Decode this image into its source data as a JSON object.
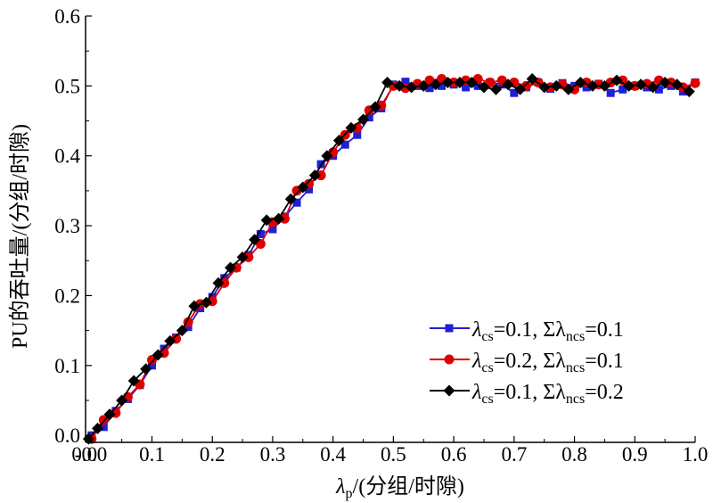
{
  "chart_data": {
    "type": "line",
    "title": "",
    "xlabel": "λp/(分组/时隙)",
    "xlabel_parts": {
      "symbol": "λ",
      "sub": "p",
      "rest": "/(分组/时隙)"
    },
    "ylabel": "PU的吞吐量/(分组/时隙)",
    "xlim": [
      -0.01,
      1.0
    ],
    "ylim": [
      -0.01,
      0.6
    ],
    "x_ticks": [
      0.0,
      0.1,
      0.2,
      0.3,
      0.4,
      0.5,
      0.6,
      0.7,
      0.8,
      0.9,
      1.0
    ],
    "x_tick_labels": [
      "0.0",
      "0.1",
      "0.2",
      "0.3",
      "0.4",
      "0.5",
      "0.6",
      "0.7",
      "0.8",
      "0.9",
      "1.0"
    ],
    "y_ticks": [
      0.0,
      0.1,
      0.2,
      0.3,
      0.4,
      0.5,
      0.6
    ],
    "y_tick_labels": [
      "0.0",
      "0.1",
      "0.2",
      "0.3",
      "0.4",
      "0.5",
      "0.6"
    ],
    "extra_x_tick_label": "-0.0",
    "grid": false,
    "legend_position": "lower-right",
    "series": [
      {
        "name": "λcs=0.1, Σλncs=0.1",
        "legend": {
          "p1": "λ",
          "s1": "cs",
          "p2": "=0.1, Σλ",
          "s2": "ncs",
          "p3": "=0.1"
        },
        "color": "#1f1fd6",
        "marker": "square",
        "x": [
          0.0,
          0.02,
          0.04,
          0.06,
          0.08,
          0.1,
          0.12,
          0.14,
          0.16,
          0.18,
          0.2,
          0.22,
          0.24,
          0.26,
          0.28,
          0.3,
          0.32,
          0.34,
          0.36,
          0.38,
          0.4,
          0.42,
          0.44,
          0.46,
          0.48,
          0.5,
          0.52,
          0.54,
          0.56,
          0.58,
          0.6,
          0.62,
          0.64,
          0.66,
          0.68,
          0.7,
          0.72,
          0.74,
          0.76,
          0.78,
          0.8,
          0.82,
          0.84,
          0.86,
          0.88,
          0.9,
          0.92,
          0.94,
          0.96,
          0.98,
          1.0
        ],
        "y": [
          0.0,
          0.012,
          0.035,
          0.052,
          0.072,
          0.1,
          0.124,
          0.14,
          0.155,
          0.182,
          0.198,
          0.225,
          0.24,
          0.258,
          0.288,
          0.295,
          0.313,
          0.333,
          0.352,
          0.388,
          0.4,
          0.416,
          0.43,
          0.455,
          0.468,
          0.502,
          0.506,
          0.5,
          0.497,
          0.5,
          0.502,
          0.498,
          0.5,
          0.505,
          0.502,
          0.49,
          0.498,
          0.505,
          0.496,
          0.504,
          0.5,
          0.498,
          0.503,
          0.49,
          0.495,
          0.5,
          0.498,
          0.495,
          0.5,
          0.492,
          0.505
        ]
      },
      {
        "name": "λcs=0.2, Σλncs=0.1",
        "legend": {
          "p1": "λ",
          "s1": "cs",
          "p2": "=0.2, Σλ",
          "s2": "ncs",
          "p3": "=0.1"
        },
        "color": "#e00000",
        "marker": "circle",
        "x": [
          0.0,
          0.02,
          0.04,
          0.06,
          0.08,
          0.1,
          0.12,
          0.14,
          0.16,
          0.18,
          0.2,
          0.22,
          0.24,
          0.26,
          0.28,
          0.3,
          0.32,
          0.34,
          0.36,
          0.38,
          0.4,
          0.42,
          0.44,
          0.46,
          0.48,
          0.5,
          0.52,
          0.54,
          0.56,
          0.58,
          0.6,
          0.62,
          0.64,
          0.66,
          0.68,
          0.7,
          0.72,
          0.74,
          0.76,
          0.78,
          0.8,
          0.82,
          0.84,
          0.86,
          0.88,
          0.9,
          0.92,
          0.94,
          0.96,
          0.98,
          1.0
        ],
        "y": [
          -0.005,
          0.022,
          0.032,
          0.055,
          0.073,
          0.108,
          0.118,
          0.138,
          0.162,
          0.188,
          0.192,
          0.218,
          0.24,
          0.255,
          0.274,
          0.305,
          0.31,
          0.35,
          0.36,
          0.372,
          0.405,
          0.43,
          0.44,
          0.465,
          0.472,
          0.5,
          0.497,
          0.503,
          0.508,
          0.51,
          0.505,
          0.508,
          0.51,
          0.505,
          0.508,
          0.505,
          0.5,
          0.505,
          0.498,
          0.502,
          0.495,
          0.505,
          0.502,
          0.505,
          0.508,
          0.5,
          0.503,
          0.508,
          0.505,
          0.498,
          0.504
        ]
      },
      {
        "name": "λcs=0.1, Σλncs=0.2",
        "legend": {
          "p1": "λ",
          "s1": "cs",
          "p2": "=0.1, Σλ",
          "s2": "ncs",
          "p3": "=0.2"
        },
        "color": "#000000",
        "marker": "diamond",
        "x": [
          -0.005,
          0.01,
          0.03,
          0.05,
          0.07,
          0.09,
          0.11,
          0.13,
          0.15,
          0.17,
          0.19,
          0.21,
          0.23,
          0.25,
          0.27,
          0.29,
          0.31,
          0.33,
          0.35,
          0.37,
          0.39,
          0.41,
          0.43,
          0.45,
          0.47,
          0.49,
          0.51,
          0.53,
          0.55,
          0.57,
          0.59,
          0.61,
          0.63,
          0.65,
          0.67,
          0.69,
          0.71,
          0.73,
          0.75,
          0.77,
          0.79,
          0.81,
          0.83,
          0.85,
          0.87,
          0.89,
          0.91,
          0.93,
          0.95,
          0.97,
          0.99
        ],
        "y": [
          -0.005,
          0.01,
          0.03,
          0.05,
          0.078,
          0.095,
          0.115,
          0.135,
          0.15,
          0.185,
          0.19,
          0.218,
          0.24,
          0.255,
          0.28,
          0.308,
          0.31,
          0.338,
          0.355,
          0.372,
          0.4,
          0.422,
          0.44,
          0.452,
          0.47,
          0.505,
          0.5,
          0.498,
          0.5,
          0.502,
          0.505,
          0.505,
          0.505,
          0.498,
          0.495,
          0.502,
          0.495,
          0.51,
          0.498,
          0.5,
          0.495,
          0.505,
          0.5,
          0.5,
          0.508,
          0.5,
          0.502,
          0.498,
          0.505,
          0.502,
          0.492
        ]
      }
    ]
  }
}
